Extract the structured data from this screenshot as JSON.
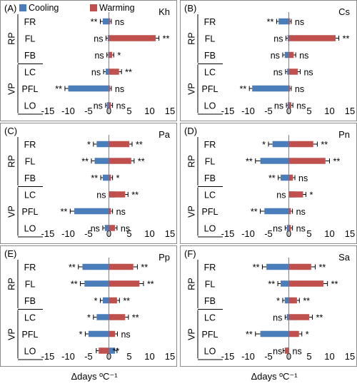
{
  "legend": [
    {
      "name": "Cooling",
      "color": "#4A7EBB"
    },
    {
      "name": "Warming",
      "color": "#C0504D"
    }
  ],
  "xlabel": "Δdays ºC⁻¹",
  "chart_data": [
    {
      "type": "bar",
      "panel": "(A)",
      "species": "Kh",
      "xlim": [
        -15,
        15
      ],
      "x_ticks": [
        -15,
        -10,
        -5,
        0,
        5,
        10,
        15
      ],
      "categories": [
        "FR",
        "FL",
        "FB",
        "LC",
        "PFL",
        "LO"
      ],
      "groups": [
        {
          "name": "RP",
          "categories": [
            "FR",
            "FL",
            "FB"
          ]
        },
        {
          "name": "VP",
          "categories": [
            "LC",
            "PFL",
            "LO"
          ]
        }
      ],
      "series": [
        {
          "name": "Cooling",
          "values": [
            -1.5,
            -0.3,
            -0.2,
            -0.8,
            -10,
            -0.5
          ],
          "errors": [
            0.6,
            0.4,
            0.3,
            0.5,
            0.8,
            0.3
          ],
          "significance": [
            "**",
            "ns",
            "ns",
            "ns",
            "**",
            "ns"
          ]
        },
        {
          "name": "Warming",
          "values": [
            0.3,
            11.5,
            0.8,
            2.5,
            0.3,
            0.5
          ],
          "errors": [
            0.3,
            0.8,
            0.4,
            0.6,
            0.3,
            0.4
          ],
          "significance": [
            "ns",
            "**",
            "*",
            "**",
            "ns",
            "ns"
          ]
        }
      ]
    },
    {
      "type": "bar",
      "panel": "(B)",
      "species": "Cs",
      "xlim": [
        -15,
        15
      ],
      "x_ticks": [
        -15,
        -10,
        -5,
        0,
        5,
        10,
        15
      ],
      "categories": [
        "FR",
        "FL",
        "FB",
        "LC",
        "PFL",
        "LO"
      ],
      "groups": [
        {
          "name": "RP",
          "categories": [
            "FR",
            "FL",
            "FB"
          ]
        },
        {
          "name": "VP",
          "categories": [
            "LC",
            "PFL",
            "LO"
          ]
        }
      ],
      "series": [
        {
          "name": "Cooling",
          "values": [
            -2.5,
            -0.3,
            -1,
            -0.4,
            -9,
            -0.3
          ],
          "errors": [
            0.5,
            0.4,
            0.5,
            0.4,
            0.7,
            0.3
          ],
          "significance": [
            "**",
            "ns",
            "ns",
            "ns",
            "**",
            "ns"
          ]
        },
        {
          "name": "Warming",
          "values": [
            0.3,
            11.5,
            1.2,
            2.2,
            0.3,
            0.6
          ],
          "errors": [
            0.3,
            0.8,
            0.5,
            0.6,
            0.3,
            0.4
          ],
          "significance": [
            "ns",
            "**",
            "ns",
            "ns",
            "ns",
            "ns"
          ]
        }
      ]
    },
    {
      "type": "bar",
      "panel": "(C)",
      "species": "Pa",
      "xlim": [
        -15,
        15
      ],
      "x_ticks": [
        -15,
        -10,
        -5,
        0,
        5,
        10,
        15
      ],
      "categories": [
        "FR",
        "FL",
        "FB",
        "LC",
        "PFL",
        "LO"
      ],
      "groups": [
        {
          "name": "RP",
          "categories": [
            "FR",
            "FL",
            "FB"
          ]
        },
        {
          "name": "VP",
          "categories": [
            "LC",
            "PFL",
            "LO"
          ]
        }
      ],
      "series": [
        {
          "name": "Cooling",
          "values": [
            -3,
            -3.5,
            -1.5,
            1.5,
            -8.5,
            -1
          ],
          "errors": [
            0.8,
            0.8,
            0.5,
            0.5,
            1.0,
            0.5
          ],
          "significance": [
            "*",
            "**",
            "**",
            "ns",
            "**",
            "ns"
          ]
        },
        {
          "name": "Warming",
          "values": [
            5,
            5.5,
            0.5,
            4,
            0.5,
            1.5
          ],
          "errors": [
            0.7,
            0.7,
            0.4,
            0.7,
            0.4,
            0.5
          ],
          "significance": [
            "**",
            "**",
            "*",
            "**",
            "ns",
            "ns"
          ]
        }
      ]
    },
    {
      "type": "bar",
      "panel": "(D)",
      "species": "Pn",
      "xlim": [
        -15,
        15
      ],
      "x_ticks": [
        -15,
        -10,
        -5,
        0,
        5,
        10,
        15
      ],
      "categories": [
        "FR",
        "FL",
        "FB",
        "LC",
        "PFL",
        "LO"
      ],
      "groups": [
        {
          "name": "RP",
          "categories": [
            "FR",
            "FL",
            "FB"
          ]
        },
        {
          "name": "VP",
          "categories": [
            "LC",
            "PFL",
            "LO"
          ]
        }
      ],
      "series": [
        {
          "name": "Cooling",
          "values": [
            -4,
            -7,
            -2,
            1.5,
            -6,
            -0.5
          ],
          "errors": [
            1.0,
            1.2,
            0.6,
            0.5,
            1.0,
            0.4
          ],
          "significance": [
            "*",
            "**",
            "**",
            "ns",
            "**",
            "ns"
          ]
        },
        {
          "name": "Warming",
          "values": [
            6,
            9,
            1,
            3.5,
            0.5,
            0.5
          ],
          "errors": [
            1.0,
            1.0,
            0.5,
            0.7,
            0.4,
            0.4
          ],
          "significance": [
            "**",
            "**",
            "ns",
            "*",
            "ns",
            "ns"
          ]
        }
      ]
    },
    {
      "type": "bar",
      "panel": "(E)",
      "species": "Pp",
      "xlim": [
        -15,
        15
      ],
      "x_ticks": [
        -15,
        -10,
        -5,
        0,
        5,
        10,
        15
      ],
      "categories": [
        "FR",
        "FL",
        "FB",
        "LC",
        "PFL",
        "LO"
      ],
      "groups": [
        {
          "name": "RP",
          "categories": [
            "FR",
            "FL",
            "FB"
          ]
        },
        {
          "name": "VP",
          "categories": [
            "LC",
            "PFL",
            "LO"
          ]
        }
      ],
      "series": [
        {
          "name": "Cooling",
          "values": [
            -6.5,
            -6,
            -1.5,
            -3,
            -5,
            1.5
          ],
          "errors": [
            1.0,
            1.0,
            0.6,
            0.8,
            0.8,
            0.5
          ],
          "significance": [
            "**",
            "**",
            "*",
            "*",
            "*",
            "*"
          ]
        },
        {
          "name": "Warming",
          "values": [
            6,
            7.5,
            2,
            4,
            1.5,
            -2.5
          ],
          "errors": [
            1.0,
            1.0,
            0.6,
            0.8,
            0.6,
            0.6
          ],
          "significance": [
            "**",
            "**",
            "**",
            "**",
            "ns",
            "**"
          ]
        }
      ]
    },
    {
      "type": "bar",
      "panel": "(F)",
      "species": "Sa",
      "xlim": [
        -15,
        15
      ],
      "x_ticks": [
        -15,
        -10,
        -5,
        0,
        5,
        10,
        15
      ],
      "categories": [
        "FR",
        "FL",
        "FB",
        "LC",
        "PFL",
        "LO"
      ],
      "groups": [
        {
          "name": "RP",
          "categories": [
            "FR",
            "FL",
            "FB"
          ]
        },
        {
          "name": "VP",
          "categories": [
            "LC",
            "PFL",
            "LO"
          ]
        }
      ],
      "series": [
        {
          "name": "Cooling",
          "values": [
            -5.5,
            -2,
            -1,
            -0.5,
            -7,
            -0.5
          ],
          "errors": [
            1.0,
            0.7,
            0.5,
            0.4,
            1.2,
            0.4
          ],
          "significance": [
            "**",
            "**",
            "*",
            "ns",
            "**",
            "ns"
          ]
        },
        {
          "name": "Warming",
          "values": [
            5.5,
            8.5,
            2,
            5,
            2.5,
            -1
          ],
          "errors": [
            1.0,
            1.0,
            0.6,
            0.8,
            0.7,
            0.4
          ],
          "significance": [
            "**",
            "**",
            "**",
            "**",
            "*",
            "ns"
          ]
        }
      ]
    }
  ]
}
